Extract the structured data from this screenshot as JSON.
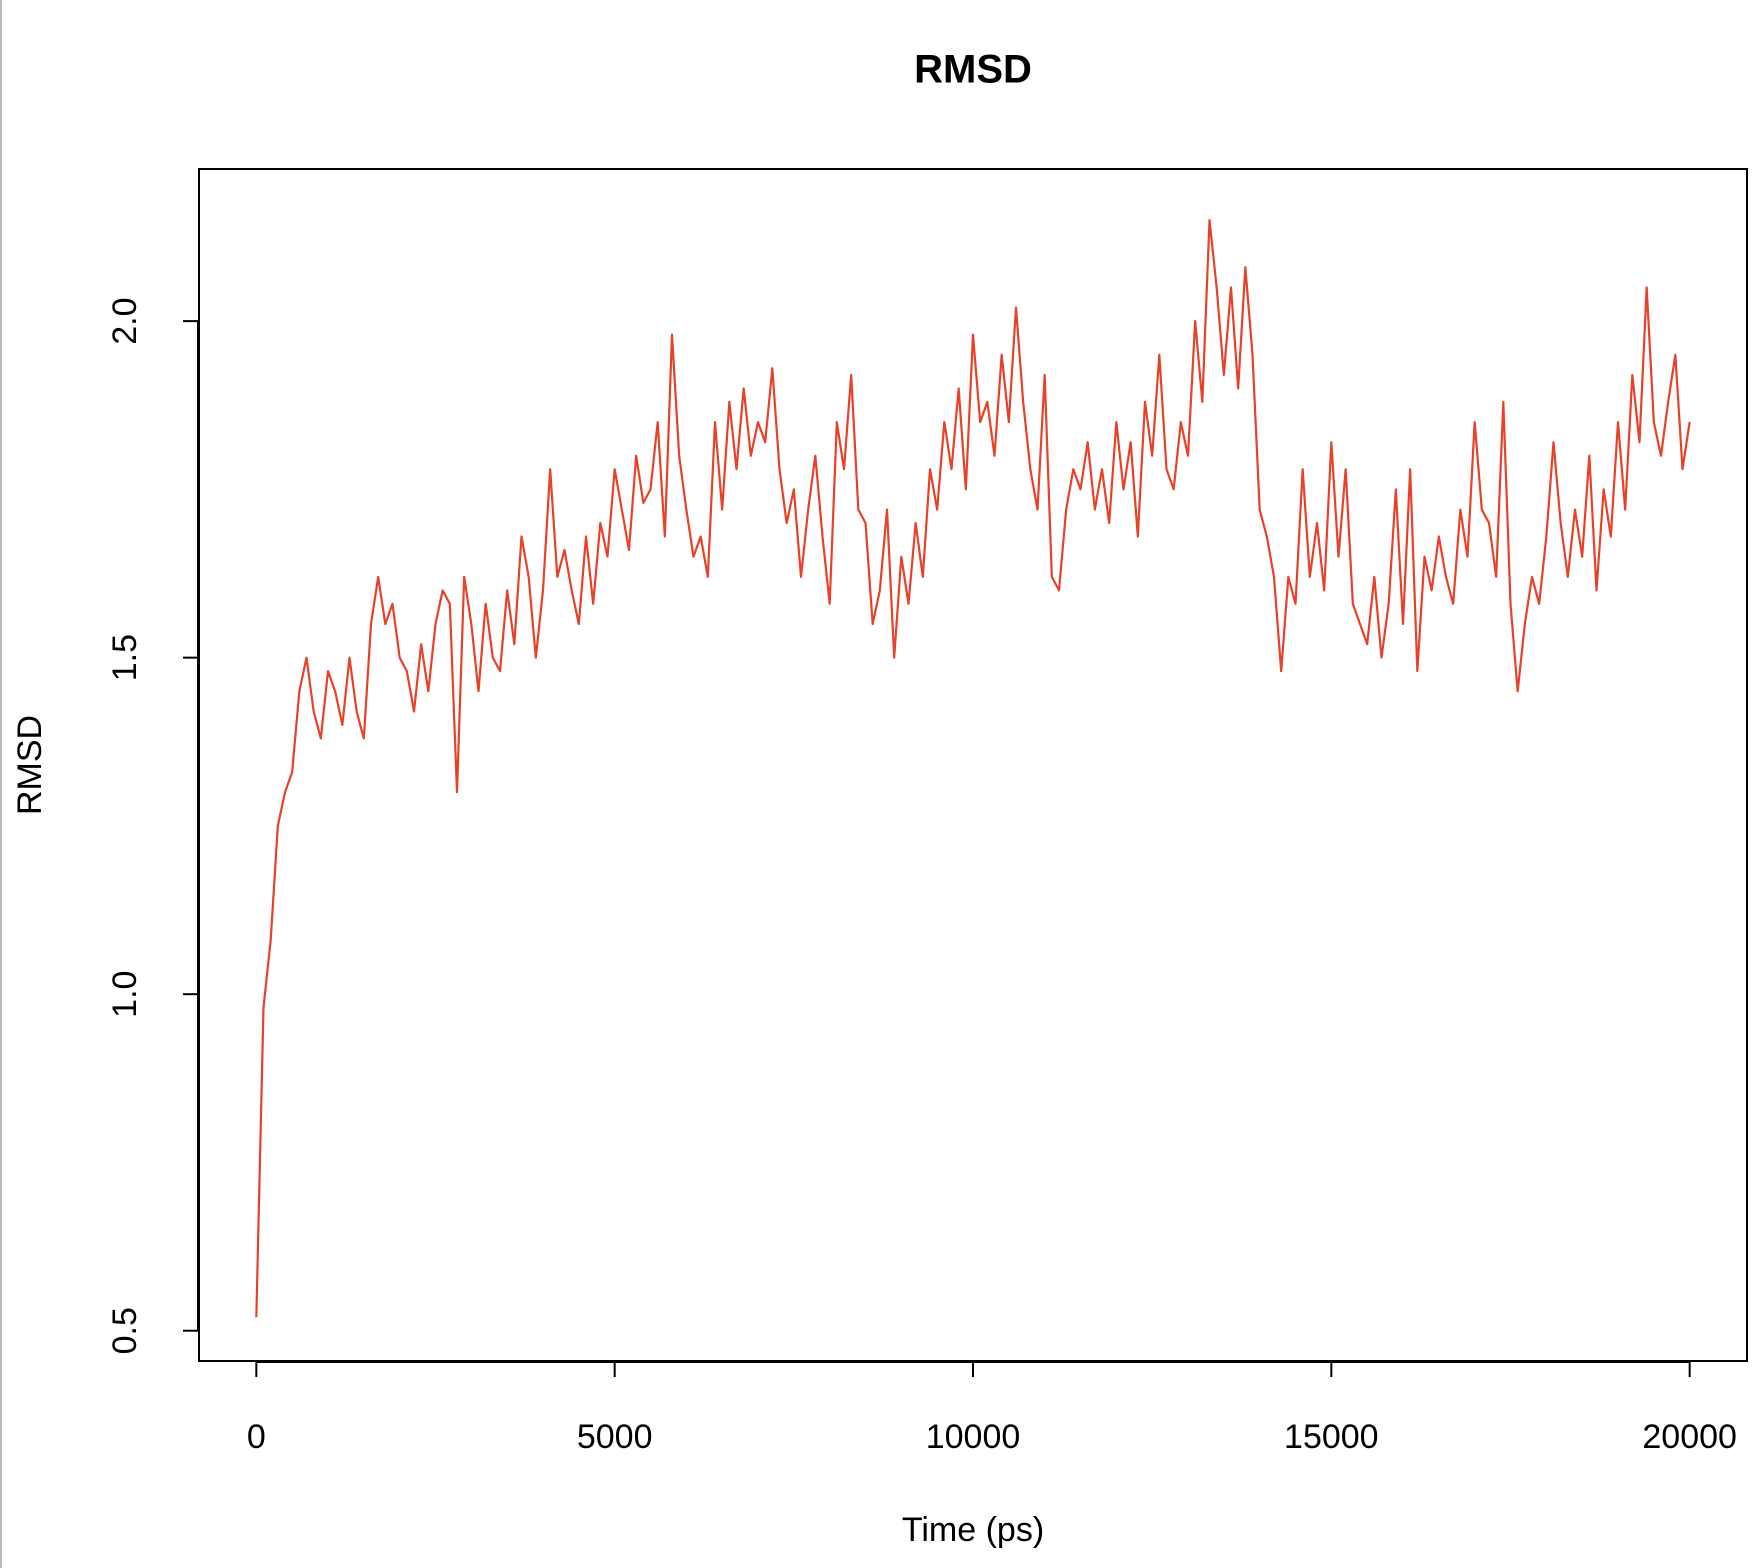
{
  "chart_data": {
    "type": "line",
    "title": "RMSD",
    "x_label": "Time (ps)",
    "y_label": "RMSD",
    "x": [
      0,
      100,
      200,
      300,
      400,
      500,
      600,
      700,
      800,
      900,
      1000,
      1100,
      1200,
      1300,
      1400,
      1500,
      1600,
      1700,
      1800,
      1900,
      2000,
      2100,
      2200,
      2300,
      2400,
      2500,
      2600,
      2700,
      2800,
      2900,
      3000,
      3100,
      3200,
      3300,
      3400,
      3500,
      3600,
      3700,
      3800,
      3900,
      4000,
      4100,
      4200,
      4300,
      4400,
      4500,
      4600,
      4700,
      4800,
      4900,
      5000,
      5100,
      5200,
      5300,
      5400,
      5500,
      5600,
      5700,
      5800,
      5900,
      6000,
      6100,
      6200,
      6300,
      6400,
      6500,
      6600,
      6700,
      6800,
      6900,
      7000,
      7100,
      7200,
      7300,
      7400,
      7500,
      7600,
      7700,
      7800,
      7900,
      8000,
      8100,
      8200,
      8300,
      8400,
      8500,
      8600,
      8700,
      8800,
      8900,
      9000,
      9100,
      9200,
      9300,
      9400,
      9500,
      9600,
      9700,
      9800,
      9900,
      10000,
      10100,
      10200,
      10300,
      10400,
      10500,
      10600,
      10700,
      10800,
      10900,
      11000,
      11100,
      11200,
      11300,
      11400,
      11500,
      11600,
      11700,
      11800,
      11900,
      12000,
      12100,
      12200,
      12300,
      12400,
      12500,
      12600,
      12700,
      12800,
      12900,
      13000,
      13100,
      13200,
      13300,
      13400,
      13500,
      13600,
      13700,
      13800,
      13900,
      14000,
      14100,
      14200,
      14300,
      14400,
      14500,
      14600,
      14700,
      14800,
      14900,
      15000,
      15100,
      15200,
      15300,
      15400,
      15500,
      15600,
      15700,
      15800,
      15900,
      16000,
      16100,
      16200,
      16300,
      16400,
      16500,
      16600,
      16700,
      16800,
      16900,
      17000,
      17100,
      17200,
      17300,
      17400,
      17500,
      17600,
      17700,
      17800,
      17900,
      18000,
      18100,
      18200,
      18300,
      18400,
      18500,
      18600,
      18700,
      18800,
      18900,
      19000,
      19100,
      19200,
      19300,
      19400,
      19500,
      19600,
      19700,
      19800,
      19900,
      20000
    ],
    "series": [
      {
        "name": "RMSD",
        "color": "#e8412a",
        "values": [
          0.52,
          0.98,
          1.08,
          1.25,
          1.3,
          1.33,
          1.45,
          1.5,
          1.42,
          1.38,
          1.48,
          1.45,
          1.4,
          1.5,
          1.42,
          1.38,
          1.55,
          1.62,
          1.55,
          1.58,
          1.5,
          1.48,
          1.42,
          1.52,
          1.45,
          1.55,
          1.6,
          1.58,
          1.3,
          1.62,
          1.55,
          1.45,
          1.58,
          1.5,
          1.48,
          1.6,
          1.52,
          1.68,
          1.62,
          1.5,
          1.6,
          1.78,
          1.62,
          1.66,
          1.6,
          1.55,
          1.68,
          1.58,
          1.7,
          1.65,
          1.78,
          1.72,
          1.66,
          1.8,
          1.73,
          1.75,
          1.85,
          1.68,
          1.98,
          1.8,
          1.72,
          1.65,
          1.68,
          1.62,
          1.85,
          1.72,
          1.88,
          1.78,
          1.9,
          1.8,
          1.85,
          1.82,
          1.93,
          1.78,
          1.7,
          1.75,
          1.62,
          1.72,
          1.8,
          1.68,
          1.58,
          1.85,
          1.78,
          1.92,
          1.72,
          1.7,
          1.55,
          1.6,
          1.72,
          1.5,
          1.65,
          1.58,
          1.7,
          1.62,
          1.78,
          1.72,
          1.85,
          1.78,
          1.9,
          1.75,
          1.98,
          1.85,
          1.88,
          1.8,
          1.95,
          1.85,
          2.02,
          1.88,
          1.78,
          1.72,
          1.92,
          1.62,
          1.6,
          1.72,
          1.78,
          1.75,
          1.82,
          1.72,
          1.78,
          1.7,
          1.85,
          1.75,
          1.82,
          1.68,
          1.88,
          1.8,
          1.95,
          1.78,
          1.75,
          1.85,
          1.8,
          2.0,
          1.88,
          2.15,
          2.05,
          1.92,
          2.05,
          1.9,
          2.08,
          1.95,
          1.72,
          1.68,
          1.62,
          1.48,
          1.62,
          1.58,
          1.78,
          1.62,
          1.7,
          1.6,
          1.82,
          1.65,
          1.78,
          1.58,
          1.55,
          1.52,
          1.62,
          1.5,
          1.58,
          1.75,
          1.55,
          1.78,
          1.48,
          1.65,
          1.6,
          1.68,
          1.62,
          1.58,
          1.72,
          1.65,
          1.85,
          1.72,
          1.7,
          1.62,
          1.88,
          1.58,
          1.45,
          1.55,
          1.62,
          1.58,
          1.68,
          1.82,
          1.7,
          1.62,
          1.72,
          1.65,
          1.8,
          1.6,
          1.75,
          1.68,
          1.85,
          1.72,
          1.92,
          1.82,
          2.05,
          1.85,
          1.8,
          1.88,
          1.95,
          1.78,
          1.85
        ]
      }
    ],
    "xlim": [
      -800,
      20800
    ],
    "xticks": [
      0,
      5000,
      10000,
      15000,
      20000
    ],
    "ylim": [
      0.455,
      2.226
    ],
    "yticks": [
      {
        "value": 0.5,
        "label": "0.5"
      },
      {
        "value": 1.0,
        "label": "1.0"
      },
      {
        "value": 1.5,
        "label": "1.5"
      },
      {
        "value": 2.0,
        "label": "2.0"
      }
    ]
  }
}
